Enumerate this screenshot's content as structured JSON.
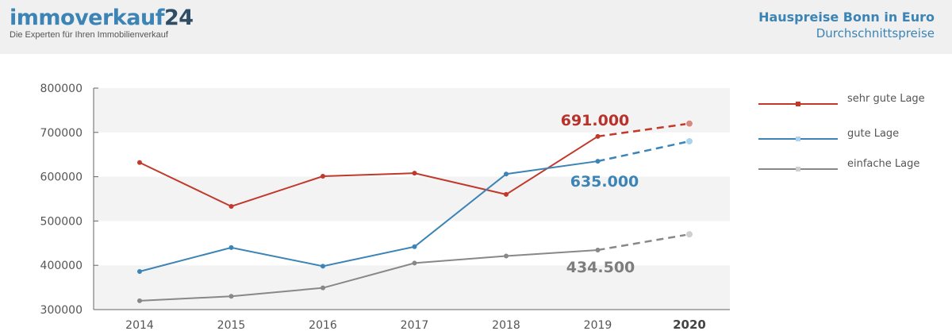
{
  "header": {
    "logo_main": "immoverkauf",
    "logo_num": "24",
    "logo_tagline": "Die Experten für Ihren Immobilienverkauf"
  },
  "chart_data": {
    "type": "line",
    "title": "Hauspreise Bonn in Euro",
    "subtitle": "Durchschnittspreise",
    "x": [
      "2014",
      "2015",
      "2016",
      "2017",
      "2018",
      "2019",
      "2020"
    ],
    "ylim": [
      300000,
      800000
    ],
    "yticks": [
      "800000",
      "700000",
      "600000",
      "500000",
      "400000",
      "300000"
    ],
    "legend_position": "right",
    "series": [
      {
        "name": "sehr gute Lage",
        "color": "#c0392b",
        "values": [
          632000,
          533000,
          601000,
          608000,
          560000,
          691000,
          720000
        ],
        "dashed_from_index": 5
      },
      {
        "name": "gute Lage",
        "color": "#3b84b5",
        "values": [
          386000,
          440000,
          398000,
          442000,
          606000,
          635000,
          680000
        ],
        "dashed_from_index": 5
      },
      {
        "name": "einfache Lage",
        "color": "#888888",
        "values": [
          320000,
          330000,
          349000,
          405000,
          421000,
          434500,
          470000
        ],
        "dashed_from_index": 5
      }
    ],
    "annotations": [
      {
        "text": "691.000",
        "series": 0,
        "color": "#b8312a"
      },
      {
        "text": "635.000",
        "series": 1,
        "color": "#3b84b5"
      },
      {
        "text": "434.500",
        "series": 2,
        "color": "#7d7d7d"
      }
    ]
  }
}
